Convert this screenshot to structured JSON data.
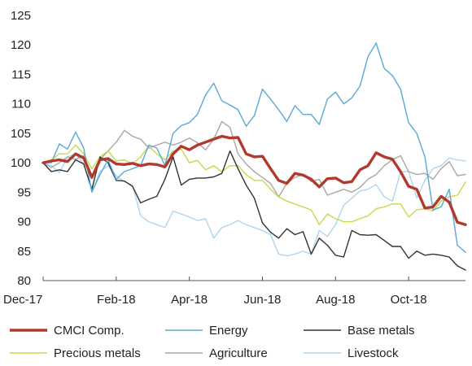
{
  "chart_data": {
    "type": "line",
    "title": "",
    "xlabel": "",
    "ylabel": "",
    "ylim": [
      80,
      125
    ],
    "yticks": [
      80,
      85,
      90,
      95,
      100,
      105,
      110,
      115,
      120,
      125
    ],
    "xtick_labels": [
      "Dec-17",
      "Feb-18",
      "Apr-18",
      "Jun-18",
      "Aug-18",
      "Oct-18"
    ],
    "grid": false,
    "legend_position": "bottom",
    "n_points": 53,
    "series": [
      {
        "name": "CMCI Comp.",
        "color": "#b03a2e",
        "values": [
          100,
          100.3,
          100.5,
          100.2,
          101.5,
          100.8,
          97.5,
          100.5,
          100.7,
          99.8,
          99.7,
          99.9,
          99.5,
          99.8,
          99.7,
          99.3,
          101.5,
          102.8,
          102.2,
          103,
          103.5,
          104,
          104.5,
          104.2,
          104.3,
          101.5,
          101,
          101.1,
          99,
          97,
          96.5,
          98.2,
          97.9,
          97.2,
          95.9,
          97.3,
          97.4,
          96.6,
          96.8,
          98.8,
          99.5,
          101.7,
          101,
          100.6,
          98.5,
          96,
          95.5,
          92.3,
          92.5,
          94.3,
          93.3,
          89.9,
          89.5
        ]
      },
      {
        "name": "Energy",
        "color": "#5aa9d6",
        "values": [
          100,
          100,
          103.2,
          102.3,
          105.2,
          102.5,
          95,
          98,
          100.5,
          97.2,
          98.5,
          99,
          99.5,
          103,
          102.5,
          99.5,
          105,
          106.3,
          106.8,
          108.2,
          111.5,
          113.5,
          110.5,
          109.8,
          109,
          106.2,
          108,
          112.5,
          110.8,
          109,
          107,
          109.7,
          108.2,
          108.2,
          106.5,
          110.8,
          112,
          110,
          111,
          113,
          118,
          120.3,
          116,
          114.8,
          112.5,
          106.8,
          105,
          101,
          92,
          92.5,
          95.5,
          86,
          84.8
        ]
      },
      {
        "name": "Base metals",
        "color": "#333333",
        "values": [
          100,
          98.5,
          98.8,
          98.5,
          100.5,
          99.8,
          95.5,
          101,
          100,
          97,
          96.9,
          96,
          93.2,
          93.8,
          94.3,
          97.2,
          101,
          96.2,
          97.2,
          97.4,
          97.4,
          97.6,
          98.2,
          102,
          99,
          96.2,
          94,
          89.8,
          88.2,
          87.2,
          88.8,
          87.8,
          88.3,
          84.5,
          87.2,
          86,
          84.3,
          84,
          88.5,
          87.8,
          87.7,
          87.8,
          86.8,
          85.8,
          85.8,
          83.8,
          85,
          84.3,
          84.5,
          84.3,
          84,
          82.5,
          81.8
        ]
      },
      {
        "name": "Precious metals",
        "color": "#c6d94a",
        "values": [
          100,
          100.5,
          101.5,
          101.5,
          103,
          101.5,
          99,
          101,
          102,
          100.3,
          100.5,
          99.8,
          101,
          102.8,
          101.5,
          100.5,
          102,
          102.3,
          100,
          100.4,
          98.8,
          99.5,
          98.5,
          99.5,
          99.5,
          98,
          97,
          97,
          95.5,
          94.2,
          93.5,
          93,
          92.5,
          92,
          89.5,
          91.3,
          90.5,
          90,
          90,
          90.5,
          91,
          92.2,
          92.5,
          93,
          93,
          90.8,
          92,
          92.2,
          91.8,
          93.5,
          94.2,
          94.5,
          96.7
        ]
      },
      {
        "name": "Agriculture",
        "color": "#a8a8a8",
        "values": [
          100,
          99.2,
          100,
          101,
          100.6,
          101.2,
          97.8,
          100.5,
          102,
          103.5,
          105.5,
          104.5,
          104,
          102.5,
          103,
          103.5,
          103,
          103.5,
          104.2,
          103.4,
          102.2,
          104,
          107,
          106,
          101.5,
          99.8,
          98.5,
          97.5,
          96.5,
          94.2,
          96.5,
          97.5,
          98,
          96.8,
          97.2,
          94.5,
          95,
          95.5,
          95,
          95.8,
          97.2,
          98,
          99.5,
          100.5,
          101.2,
          98.5,
          98,
          98.2,
          97.2,
          99,
          100.2,
          97.8,
          98
        ]
      },
      {
        "name": "Livestock",
        "color": "#aed6ee",
        "values": [
          100,
          99.5,
          98.3,
          101,
          101.5,
          99.8,
          95.2,
          98.5,
          99.5,
          97.8,
          96.8,
          96.2,
          91,
          90,
          89.5,
          89,
          91.8,
          91.3,
          90.8,
          90.2,
          90.5,
          87.2,
          89,
          89.5,
          90.2,
          89.5,
          89,
          88.5,
          87.8,
          84.5,
          84.2,
          84.5,
          85,
          84.5,
          88.5,
          87.5,
          89.5,
          92.8,
          94,
          95.2,
          95.5,
          96.3,
          94.2,
          93.5,
          98.5,
          98.5,
          94,
          97,
          99,
          99.5,
          100.8,
          100.5,
          100.3
        ]
      }
    ]
  }
}
